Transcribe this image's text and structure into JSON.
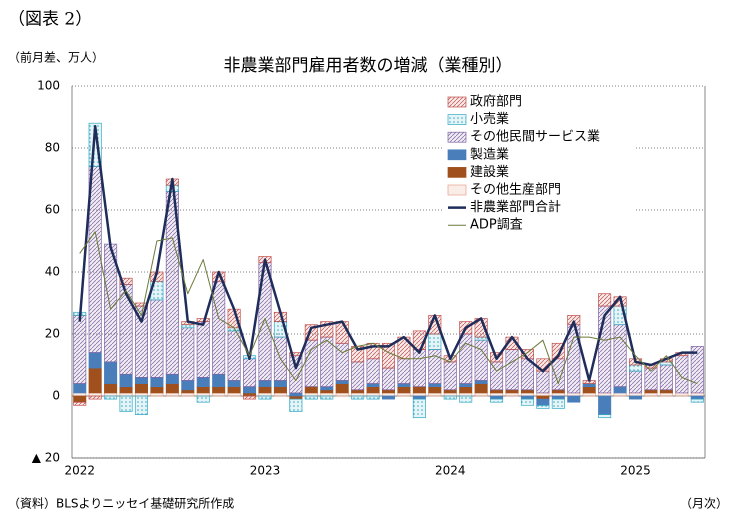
{
  "chart_data": {
    "type": "bar",
    "figure_label": "（図表 2）",
    "title": "非農業部門雇用者数の増減（業種別）",
    "y_label": "（前月差、万人）",
    "x_label": "（月次）",
    "source": "（資料）BLSよりニッセイ基礎研究所作成",
    "categories": [
      "2022",
      null,
      null,
      null,
      null,
      null,
      null,
      null,
      null,
      null,
      null,
      null,
      "2023",
      null,
      null,
      null,
      null,
      null,
      null,
      null,
      null,
      null,
      null,
      null,
      "2024",
      null,
      null,
      null,
      null,
      null,
      null,
      null,
      null,
      null,
      null,
      null,
      "2025",
      null,
      null,
      null,
      null
    ],
    "ylim": [
      -20,
      100
    ],
    "yticks": [
      {
        "value": -20,
        "label": "▲ 20"
      },
      0,
      20,
      40,
      60,
      80,
      100
    ],
    "grid": true,
    "legend": "upper right",
    "series": [
      {
        "name": "政府部門",
        "type": "bar",
        "color": "#c0504d",
        "pattern": "hatch",
        "values": [
          -1,
          -1,
          0,
          2,
          1,
          3,
          2,
          1,
          1,
          3,
          6,
          -1,
          2,
          3,
          1,
          5,
          5,
          7,
          5,
          5,
          8,
          7,
          6,
          6,
          2,
          4,
          6,
          3,
          4,
          3,
          4,
          5,
          3,
          1,
          4,
          3,
          2,
          1,
          1,
          1,
          0
        ]
      },
      {
        "name": "小売業",
        "type": "bar",
        "color": "#31a9c4",
        "pattern": "dots",
        "values": [
          1,
          14,
          -1,
          -5,
          -6,
          6,
          2,
          1,
          -2,
          0,
          1,
          1,
          -1,
          5,
          -4,
          -1,
          -1,
          0,
          -1,
          -1,
          0,
          0,
          -6,
          5,
          -1,
          -2,
          1,
          -1,
          0,
          -2,
          -1,
          -3,
          0,
          0,
          -1,
          6,
          2,
          0,
          1,
          0,
          -1
        ]
      },
      {
        "name": "その他民間サービス業",
        "type": "bar",
        "color": "#8064a2",
        "pattern": "hatch",
        "values": [
          22,
          60,
          38,
          29,
          23,
          25,
          59,
          17,
          18,
          30,
          16,
          9,
          38,
          14,
          12,
          15,
          16,
          12,
          9,
          8,
          7,
          8,
          12,
          11,
          9,
          16,
          13,
          9,
          13,
          10,
          7,
          10,
          22,
          0,
          28,
          20,
          7,
          7,
          8,
          12,
          15
        ]
      },
      {
        "name": "製造業",
        "type": "bar",
        "color": "#4a7ebb",
        "pattern": "solid",
        "values": [
          3,
          5,
          7,
          4,
          2,
          3,
          3,
          3,
          3,
          4,
          2,
          2,
          2,
          2,
          1,
          0,
          1,
          1,
          0,
          1,
          -1,
          1,
          -1,
          1,
          0,
          1,
          1,
          -1,
          0,
          -1,
          -2,
          -1,
          -2,
          1,
          -6,
          2,
          -1,
          0,
          0,
          0,
          -1
        ]
      },
      {
        "name": "建設業",
        "type": "bar",
        "color": "#a0501c",
        "pattern": "solid",
        "values": [
          -2,
          8,
          3,
          2,
          3,
          2,
          3,
          1,
          2,
          2,
          2,
          1,
          2,
          2,
          -1,
          2,
          1,
          3,
          1,
          2,
          1,
          2,
          2,
          2,
          1,
          2,
          3,
          1,
          1,
          1,
          -1,
          1,
          0,
          2,
          0,
          0,
          0,
          1,
          1,
          0,
          0
        ]
      },
      {
        "name": "その他生産部門",
        "type": "bar",
        "color": "#e6a38a",
        "pattern": "light",
        "values": [
          1,
          1,
          1,
          1,
          1,
          1,
          1,
          1,
          1,
          1,
          1,
          0,
          1,
          1,
          0,
          1,
          1,
          1,
          1,
          1,
          1,
          1,
          1,
          1,
          1,
          1,
          1,
          1,
          1,
          1,
          1,
          1,
          1,
          1,
          1,
          1,
          1,
          1,
          1,
          1,
          1
        ]
      },
      {
        "name": "非農業部門合計",
        "type": "line",
        "color": "#1f2d5a",
        "width": 2.5,
        "values": [
          24,
          87,
          48,
          33,
          24,
          40,
          70,
          24,
          23,
          40,
          28,
          12,
          44,
          27,
          9,
          22,
          23,
          24,
          15,
          16,
          16,
          19,
          14,
          26,
          12,
          22,
          25,
          12,
          19,
          12,
          8,
          13,
          24,
          5,
          26,
          32,
          11,
          10,
          12,
          14,
          14
        ]
      },
      {
        "name": "ADP調査",
        "type": "line",
        "color": "#6b7a3a",
        "width": 1,
        "values": [
          46,
          53,
          28,
          34,
          26,
          50,
          51,
          33,
          44,
          25,
          22,
          13,
          25,
          12,
          5,
          15,
          18,
          14,
          16,
          17,
          14,
          12,
          12,
          13,
          11,
          17,
          15,
          8,
          11,
          14,
          18,
          4,
          19,
          19,
          18,
          19,
          13,
          8,
          13,
          6,
          4
        ]
      }
    ]
  }
}
